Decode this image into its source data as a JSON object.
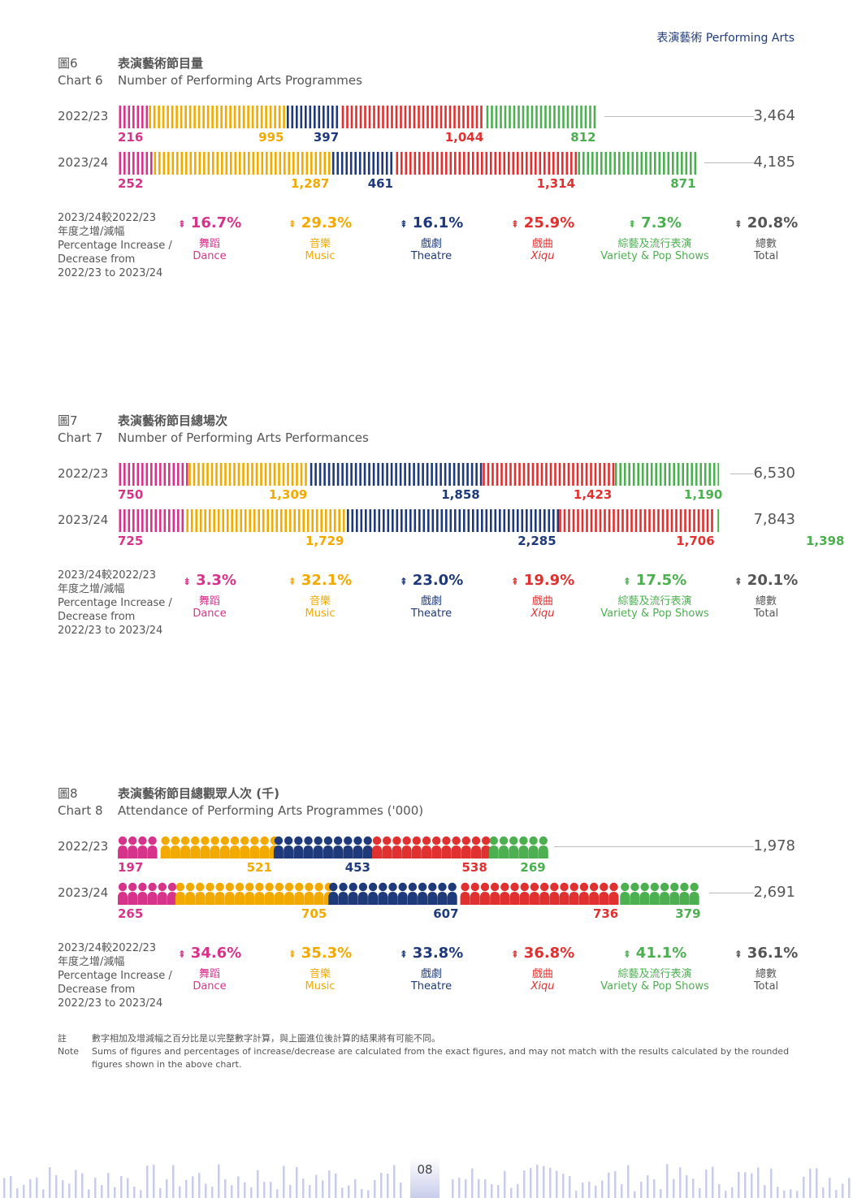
{
  "header": {
    "section_zh": "表演藝術",
    "section_en": "Performing Arts"
  },
  "colors": {
    "Dance": "#d6338a",
    "Music": "#f2a900",
    "Theatre": "#1f3a7a",
    "Xiqu": "#e03030",
    "Variety": "#4caf50"
  },
  "common": {
    "pct_label_lines": [
      "2023/24較2022/23",
      "年度之增/減幅",
      "Percentage Increase /",
      "Decrease from",
      "2022/23 to 2023/24"
    ],
    "categories": [
      {
        "zh": "舞蹈",
        "en": "Dance"
      },
      {
        "zh": "音樂",
        "en": "Music"
      },
      {
        "zh": "戲劇",
        "en": "Theatre"
      },
      {
        "zh": "戲曲",
        "en": "Xiqu"
      },
      {
        "zh": "綜藝及流行表演",
        "en": "Variety & Pop Shows"
      },
      {
        "zh": "總數",
        "en": "Total"
      }
    ]
  },
  "chart_data": [
    {
      "type": "bar",
      "chart_num_zh": "圖6",
      "chart_num_en": "Chart 6",
      "title_zh": "表演藝術節目量",
      "title_en": "Number of Performing Arts Programmes",
      "style": "stripes",
      "categories": [
        "Dance",
        "Music",
        "Theatre",
        "Xiqu",
        "Variety & Pop Shows"
      ],
      "series": [
        {
          "name": "2022/23",
          "values": [
            216,
            995,
            397,
            1044,
            812
          ],
          "labels": [
            "216",
            "995",
            "397",
            "1,044",
            "812"
          ],
          "total": "3,464"
        },
        {
          "name": "2023/24",
          "values": [
            252,
            1287,
            461,
            1314,
            871
          ],
          "labels": [
            "252",
            "1,287",
            "461",
            "1,314",
            "871"
          ],
          "total": "4,185"
        }
      ],
      "pct": [
        {
          "dir": "up",
          "text": "16.7%"
        },
        {
          "dir": "up",
          "text": "29.3%"
        },
        {
          "dir": "up",
          "text": "16.1%"
        },
        {
          "dir": "up",
          "text": "25.9%"
        },
        {
          "dir": "up",
          "text": "7.3%"
        },
        {
          "dir": "up",
          "text": "20.8%"
        }
      ]
    },
    {
      "type": "bar",
      "chart_num_zh": "圖7",
      "chart_num_en": "Chart 7",
      "title_zh": "表演藝術節目總場次",
      "title_en": "Number of Performing Arts Performances",
      "style": "stripes",
      "categories": [
        "Dance",
        "Music",
        "Theatre",
        "Xiqu",
        "Variety & Pop Shows"
      ],
      "series": [
        {
          "name": "2022/23",
          "values": [
            750,
            1309,
            1858,
            1423,
            1190
          ],
          "labels": [
            "750",
            "1,309",
            "1,858",
            "1,423",
            "1,190"
          ],
          "total": "6,530"
        },
        {
          "name": "2023/24",
          "values": [
            725,
            1729,
            2285,
            1706,
            1398
          ],
          "labels": [
            "725",
            "1,729",
            "2,285",
            "1,706",
            "1,398"
          ],
          "total": "7,843"
        }
      ],
      "pct": [
        {
          "dir": "down",
          "text": "3.3%"
        },
        {
          "dir": "up",
          "text": "32.1%"
        },
        {
          "dir": "up",
          "text": "23.0%"
        },
        {
          "dir": "up",
          "text": "19.9%"
        },
        {
          "dir": "up",
          "text": "17.5%"
        },
        {
          "dir": "up",
          "text": "20.1%"
        }
      ]
    },
    {
      "type": "bar",
      "chart_num_zh": "圖8",
      "chart_num_en": "Chart 8",
      "title_zh": "表演藝術節目總觀眾人次 (千)",
      "title_en": "Attendance of Performing Arts Programmes ('000)",
      "style": "people",
      "categories": [
        "Dance",
        "Music",
        "Theatre",
        "Xiqu",
        "Variety & Pop Shows"
      ],
      "series": [
        {
          "name": "2022/23",
          "values": [
            197,
            521,
            453,
            538,
            269
          ],
          "labels": [
            "197",
            "521",
            "453",
            "538",
            "269"
          ],
          "total": "1,978"
        },
        {
          "name": "2023/24",
          "values": [
            265,
            705,
            607,
            736,
            379
          ],
          "labels": [
            "265",
            "705",
            "607",
            "736",
            "379"
          ],
          "total": "2,691"
        }
      ],
      "pct": [
        {
          "dir": "up",
          "text": "34.6%"
        },
        {
          "dir": "up",
          "text": "35.3%"
        },
        {
          "dir": "up",
          "text": "33.8%"
        },
        {
          "dir": "up",
          "text": "36.8%"
        },
        {
          "dir": "up",
          "text": "41.1%"
        },
        {
          "dir": "up",
          "text": "36.1%"
        }
      ]
    }
  ],
  "note": {
    "label_zh": "註",
    "label_en": "Note",
    "text_zh": "數字相加及增減幅之百分比是以完整數字計算，與上圖進位後計算的結果將有可能不同。",
    "text_en": "Sums of figures and percentages of increase/decrease are calculated from the exact figures, and may not match with the results calculated by the rounded figures shown in the above chart."
  },
  "page_number": "08"
}
